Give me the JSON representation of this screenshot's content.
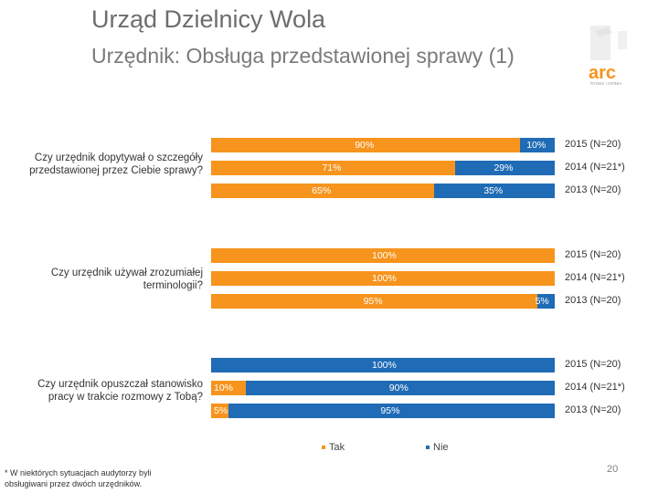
{
  "header": {
    "title": "Urząd Dzielnicy Wola",
    "subtitle": "Urzędnik: Obsługa przedstawionej sprawy (1)"
  },
  "colors": {
    "tak": "#F7941D",
    "nie": "#1F6BB5"
  },
  "chart_data": {
    "type": "bar",
    "orientation": "horizontal",
    "stacked": true,
    "unit": "%",
    "series_names": [
      "Tak",
      "Nie"
    ],
    "groups": [
      {
        "question": "Czy urzędnik dopytywał o szczegóły przedstawionej przez Ciebie sprawy?",
        "rows": [
          {
            "year": "2015 (N=20)",
            "tak": 90,
            "nie": 10,
            "tak_label": "90%",
            "nie_label": "10%"
          },
          {
            "year": "2014 (N=21*)",
            "tak": 71,
            "nie": 29,
            "tak_label": "71%",
            "nie_label": "29%"
          },
          {
            "year": "2013 (N=20)",
            "tak": 65,
            "nie": 35,
            "tak_label": "65%",
            "nie_label": "35%"
          }
        ]
      },
      {
        "question": "Czy urzędnik używał zrozumiałej terminologii?",
        "rows": [
          {
            "year": "2015 (N=20)",
            "tak": 100,
            "nie": 0,
            "tak_label": "100%",
            "nie_label": ""
          },
          {
            "year": "2014 (N=21*)",
            "tak": 100,
            "nie": 0,
            "tak_label": "100%",
            "nie_label": ""
          },
          {
            "year": "2013 (N=20)",
            "tak": 95,
            "nie": 5,
            "tak_label": "95%",
            "nie_label": "5%"
          }
        ]
      },
      {
        "question": "Czy urzędnik opuszczał stanowisko pracy w trakcie rozmowy z Tobą?",
        "rows": [
          {
            "year": "2015 (N=20)",
            "tak": 0,
            "nie": 100,
            "tak_label": "",
            "nie_label": "100%"
          },
          {
            "year": "2014 (N=21*)",
            "tak": 10,
            "nie": 90,
            "tak_label": "10%",
            "nie_label": "90%"
          },
          {
            "year": "2013 (N=20)",
            "tak": 5,
            "nie": 95,
            "tak_label": "5%",
            "nie_label": "95%"
          }
        ]
      }
    ],
    "legend": [
      "Tak",
      "Nie"
    ]
  },
  "footnote": "* W niektórych sytuacjach audytorzy byli obsługiwani przez dwóch urzędników.",
  "page_number": "20",
  "logo": {
    "text": "arc",
    "tagline": "RYNEK I OPINIA"
  }
}
